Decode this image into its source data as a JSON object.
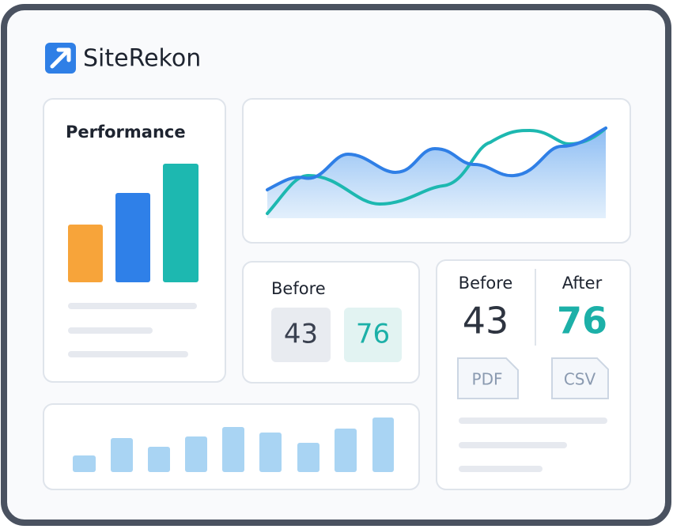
{
  "header": {
    "brand": "SiteRekon"
  },
  "performance": {
    "title": "Performance"
  },
  "comparison_small": {
    "label": "Before",
    "before": 43,
    "after": 76
  },
  "comparison_large": {
    "before_label": "Before",
    "after_label": "After",
    "before": 43,
    "after": 76,
    "exports": [
      "PDF",
      "CSV"
    ]
  }
}
